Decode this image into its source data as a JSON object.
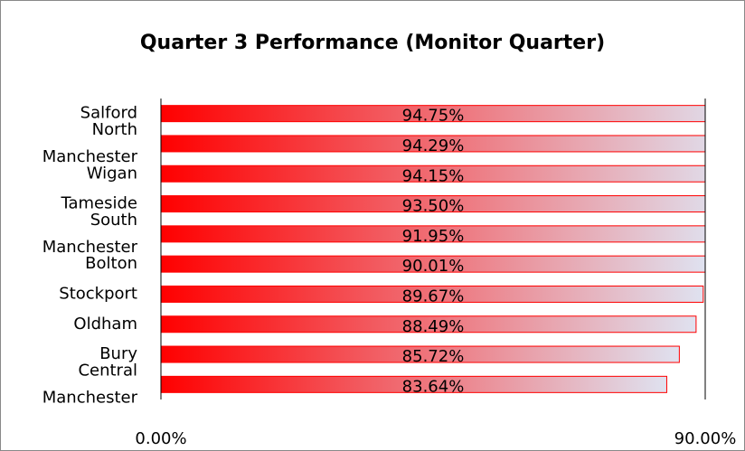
{
  "chart_data": {
    "type": "bar",
    "orientation": "horizontal",
    "title": "Quarter 3 Performance (Monitor Quarter)",
    "categories": [
      "Salford",
      "North Manchester",
      "Wigan",
      "Tameside",
      "South Manchester",
      "Bolton",
      "Stockport",
      "Oldham",
      "Bury",
      "Central Manchester"
    ],
    "values": [
      94.75,
      94.29,
      94.15,
      93.5,
      91.95,
      90.01,
      89.67,
      88.49,
      85.72,
      83.64
    ],
    "value_labels": [
      "94.75%",
      "94.29%",
      "94.15%",
      "93.50%",
      "91.95%",
      "90.01%",
      "89.67%",
      "88.49%",
      "85.72%",
      "83.64%"
    ],
    "color": "#ff0000",
    "xlim": [
      0,
      90
    ],
    "xticks": [
      {
        "value": 0,
        "label": "0.00%"
      },
      {
        "value": 90,
        "label": "90.00%"
      }
    ]
  }
}
